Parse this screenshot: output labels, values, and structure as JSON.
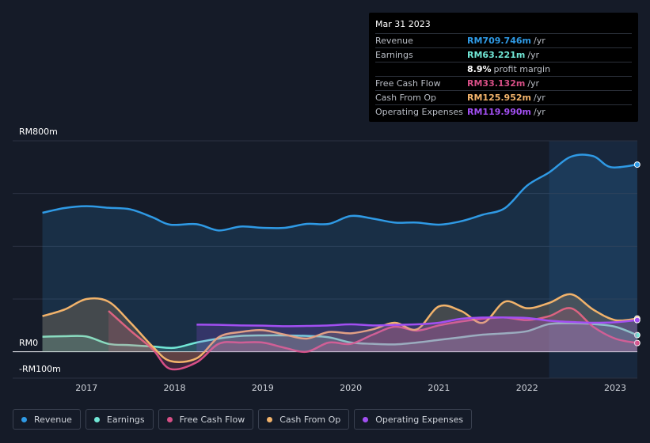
{
  "tooltip": {
    "date": "Mar 31 2023",
    "rows": [
      {
        "label": "Revenue",
        "value": "RM709.746m",
        "unit": "/yr",
        "color": "#2f9ae5"
      },
      {
        "label": "Earnings",
        "value": "RM63.221m",
        "unit": "/yr",
        "color": "#71e7d6"
      },
      {
        "label": "",
        "value": "8.9%",
        "unit": "profit margin",
        "color": "#ffffff"
      },
      {
        "label": "Free Cash Flow",
        "value": "RM33.132m",
        "unit": "/yr",
        "color": "#d74f86"
      },
      {
        "label": "Cash From Op",
        "value": "RM125.952m",
        "unit": "/yr",
        "color": "#f2b36b"
      },
      {
        "label": "Operating Expenses",
        "value": "RM119.990m",
        "unit": "/yr",
        "color": "#a24ff2"
      }
    ]
  },
  "legend": [
    {
      "label": "Revenue",
      "color": "#2f9ae5"
    },
    {
      "label": "Earnings",
      "color": "#71e7d6"
    },
    {
      "label": "Free Cash Flow",
      "color": "#d74f86"
    },
    {
      "label": "Cash From Op",
      "color": "#f2b36b"
    },
    {
      "label": "Operating Expenses",
      "color": "#a24ff2"
    }
  ],
  "chart_data": {
    "type": "area",
    "y_labels": {
      "top": "RM800m",
      "zero": "RM0",
      "bottom": "-RM100m"
    },
    "ylim": [
      -100,
      800
    ],
    "xlim": [
      2016.45,
      2023.25
    ],
    "x_ticks": [
      "2017",
      "2018",
      "2019",
      "2020",
      "2021",
      "2022",
      "2023"
    ],
    "highlight_from": 2022.25,
    "series": [
      {
        "name": "Revenue",
        "color": "#2f9ae5",
        "points": [
          [
            2016.5,
            527
          ],
          [
            2016.75,
            545
          ],
          [
            2017.0,
            552
          ],
          [
            2017.25,
            546
          ],
          [
            2017.5,
            540
          ],
          [
            2017.75,
            510
          ],
          [
            2017.95,
            482
          ],
          [
            2018.25,
            484
          ],
          [
            2018.5,
            460
          ],
          [
            2018.75,
            475
          ],
          [
            2019.0,
            470
          ],
          [
            2019.25,
            470
          ],
          [
            2019.5,
            485
          ],
          [
            2019.75,
            485
          ],
          [
            2020.0,
            515
          ],
          [
            2020.25,
            505
          ],
          [
            2020.5,
            490
          ],
          [
            2020.75,
            490
          ],
          [
            2021.0,
            482
          ],
          [
            2021.25,
            495
          ],
          [
            2021.5,
            520
          ],
          [
            2021.75,
            545
          ],
          [
            2022.0,
            630
          ],
          [
            2022.25,
            680
          ],
          [
            2022.5,
            740
          ],
          [
            2022.75,
            742
          ],
          [
            2022.95,
            700
          ],
          [
            2023.25,
            709.7
          ]
        ]
      },
      {
        "name": "Earnings",
        "color": "#71e7d6",
        "points": [
          [
            2016.5,
            57
          ],
          [
            2016.75,
            59
          ],
          [
            2017.0,
            58
          ],
          [
            2017.25,
            30
          ],
          [
            2017.5,
            25
          ],
          [
            2017.75,
            20
          ],
          [
            2018.0,
            15
          ],
          [
            2018.25,
            35
          ],
          [
            2018.5,
            50
          ],
          [
            2018.75,
            60
          ],
          [
            2019.0,
            62
          ],
          [
            2019.25,
            62
          ],
          [
            2019.5,
            60
          ],
          [
            2019.75,
            55
          ],
          [
            2020.0,
            35
          ],
          [
            2020.25,
            30
          ],
          [
            2020.5,
            28
          ],
          [
            2020.75,
            35
          ],
          [
            2021.0,
            45
          ],
          [
            2021.25,
            55
          ],
          [
            2021.5,
            65
          ],
          [
            2021.75,
            70
          ],
          [
            2022.0,
            78
          ],
          [
            2022.25,
            105
          ],
          [
            2022.5,
            108
          ],
          [
            2022.75,
            105
          ],
          [
            2023.0,
            95
          ],
          [
            2023.25,
            63.2
          ]
        ]
      },
      {
        "name": "Free Cash Flow",
        "color": "#d74f86",
        "points": [
          [
            2017.25,
            155
          ],
          [
            2017.5,
            80
          ],
          [
            2017.75,
            10
          ],
          [
            2017.95,
            -65
          ],
          [
            2018.25,
            -40
          ],
          [
            2018.5,
            30
          ],
          [
            2018.75,
            35
          ],
          [
            2019.0,
            35
          ],
          [
            2019.25,
            15
          ],
          [
            2019.5,
            0
          ],
          [
            2019.75,
            35
          ],
          [
            2020.0,
            30
          ],
          [
            2020.25,
            65
          ],
          [
            2020.5,
            95
          ],
          [
            2020.75,
            80
          ],
          [
            2021.0,
            100
          ],
          [
            2021.25,
            115
          ],
          [
            2021.5,
            125
          ],
          [
            2021.75,
            130
          ],
          [
            2022.0,
            120
          ],
          [
            2022.25,
            135
          ],
          [
            2022.5,
            165
          ],
          [
            2022.75,
            95
          ],
          [
            2023.0,
            50
          ],
          [
            2023.25,
            33.1
          ]
        ]
      },
      {
        "name": "Cash From Op",
        "color": "#f2b36b",
        "points": [
          [
            2016.5,
            135
          ],
          [
            2016.75,
            160
          ],
          [
            2017.0,
            200
          ],
          [
            2017.25,
            190
          ],
          [
            2017.5,
            110
          ],
          [
            2017.75,
            20
          ],
          [
            2017.95,
            -35
          ],
          [
            2018.25,
            -25
          ],
          [
            2018.5,
            55
          ],
          [
            2018.75,
            75
          ],
          [
            2019.0,
            82
          ],
          [
            2019.25,
            65
          ],
          [
            2019.5,
            50
          ],
          [
            2019.75,
            75
          ],
          [
            2020.0,
            70
          ],
          [
            2020.25,
            85
          ],
          [
            2020.5,
            110
          ],
          [
            2020.75,
            85
          ],
          [
            2021.0,
            172
          ],
          [
            2021.25,
            155
          ],
          [
            2021.5,
            110
          ],
          [
            2021.75,
            190
          ],
          [
            2022.0,
            165
          ],
          [
            2022.25,
            185
          ],
          [
            2022.5,
            218
          ],
          [
            2022.75,
            160
          ],
          [
            2023.0,
            120
          ],
          [
            2023.25,
            126
          ]
        ]
      },
      {
        "name": "Operating Expenses",
        "color": "#a24ff2",
        "points": [
          [
            2018.25,
            103
          ],
          [
            2018.5,
            102
          ],
          [
            2018.75,
            100
          ],
          [
            2019.0,
            99
          ],
          [
            2019.25,
            97
          ],
          [
            2019.5,
            98
          ],
          [
            2019.75,
            100
          ],
          [
            2020.0,
            104
          ],
          [
            2020.25,
            100
          ],
          [
            2020.5,
            102
          ],
          [
            2020.75,
            104
          ],
          [
            2021.0,
            110
          ],
          [
            2021.25,
            125
          ],
          [
            2021.5,
            130
          ],
          [
            2021.75,
            130
          ],
          [
            2022.0,
            128
          ],
          [
            2022.25,
            118
          ],
          [
            2022.5,
            113
          ],
          [
            2022.75,
            110
          ],
          [
            2023.0,
            112
          ],
          [
            2023.25,
            120
          ]
        ]
      }
    ]
  }
}
